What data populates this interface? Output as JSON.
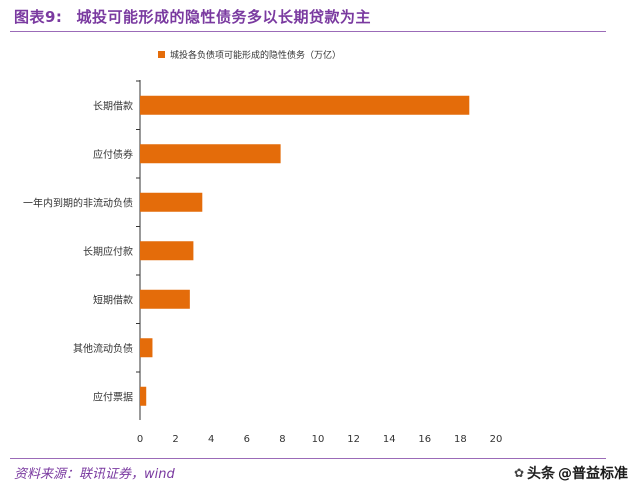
{
  "figure": {
    "number": "图表9:",
    "title": "城投可能形成的隐性债务多以长期贷款为主",
    "source": "资料来源：联讯证券，wind"
  },
  "watermark": {
    "platform": "头条",
    "handle": "@普益标准",
    "icon": "chat-bubble-icon"
  },
  "chart_data": {
    "type": "bar",
    "orientation": "horizontal",
    "categories": [
      "长期借款",
      "应付债券",
      "一年内到期的非流动负债",
      "长期应付款",
      "短期借款",
      "其他流动负债",
      "应付票据"
    ],
    "series": [
      {
        "name": "城投各负债项可能形成的隐性债务（万亿）",
        "values": [
          18.5,
          7.9,
          3.5,
          3.0,
          2.8,
          0.7,
          0.35
        ]
      }
    ],
    "xlim": [
      0,
      20
    ],
    "xticks": [
      0,
      2,
      4,
      6,
      8,
      10,
      12,
      14,
      16,
      18,
      20
    ],
    "legend_position": "top",
    "grid": false,
    "color": "#e46c0a"
  }
}
